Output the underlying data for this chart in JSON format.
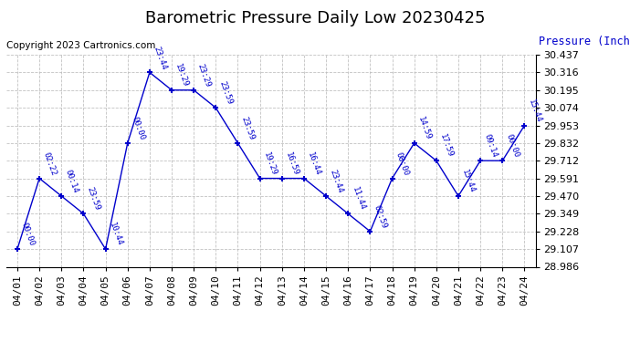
{
  "title": "Barometric Pressure Daily Low 20230425",
  "ylabel": "Pressure (Inches/Hg)",
  "copyright": "Copyright 2023 Cartronics.com",
  "dates": [
    "04/01",
    "04/02",
    "04/03",
    "04/04",
    "04/05",
    "04/06",
    "04/07",
    "04/08",
    "04/09",
    "04/10",
    "04/11",
    "04/12",
    "04/13",
    "04/14",
    "04/15",
    "04/16",
    "04/17",
    "04/18",
    "04/19",
    "04/20",
    "04/21",
    "04/22",
    "04/23",
    "04/24"
  ],
  "values": [
    29.107,
    29.591,
    29.47,
    29.349,
    29.107,
    29.832,
    30.316,
    30.195,
    30.195,
    30.074,
    29.832,
    29.591,
    29.591,
    29.591,
    29.47,
    29.349,
    29.228,
    29.591,
    29.832,
    29.712,
    29.47,
    29.712,
    29.712,
    29.953
  ],
  "times": [
    "00:00",
    "02:22",
    "00:14",
    "23:59",
    "10:44",
    "00:00",
    "23:44",
    "19:29",
    "23:29",
    "23:59",
    "23:59",
    "19:29",
    "16:59",
    "16:44",
    "23:44",
    "11:44",
    "02:59",
    "08:00",
    "14:59",
    "17:59",
    "15:44",
    "09:14",
    "00:00",
    "15:44"
  ],
  "ylim_min": 28.986,
  "ylim_max": 30.437,
  "yticks": [
    28.986,
    29.107,
    29.228,
    29.349,
    29.47,
    29.591,
    29.712,
    29.832,
    29.953,
    30.074,
    30.195,
    30.316,
    30.437
  ],
  "line_color": "#0000cc",
  "marker_color": "#0000cc",
  "grid_color": "#bbbbbb",
  "bg_color": "#ffffff",
  "title_fontsize": 13,
  "label_fontsize": 8.5,
  "tick_fontsize": 8,
  "annotation_fontsize": 6.5,
  "copyright_fontsize": 7.5
}
